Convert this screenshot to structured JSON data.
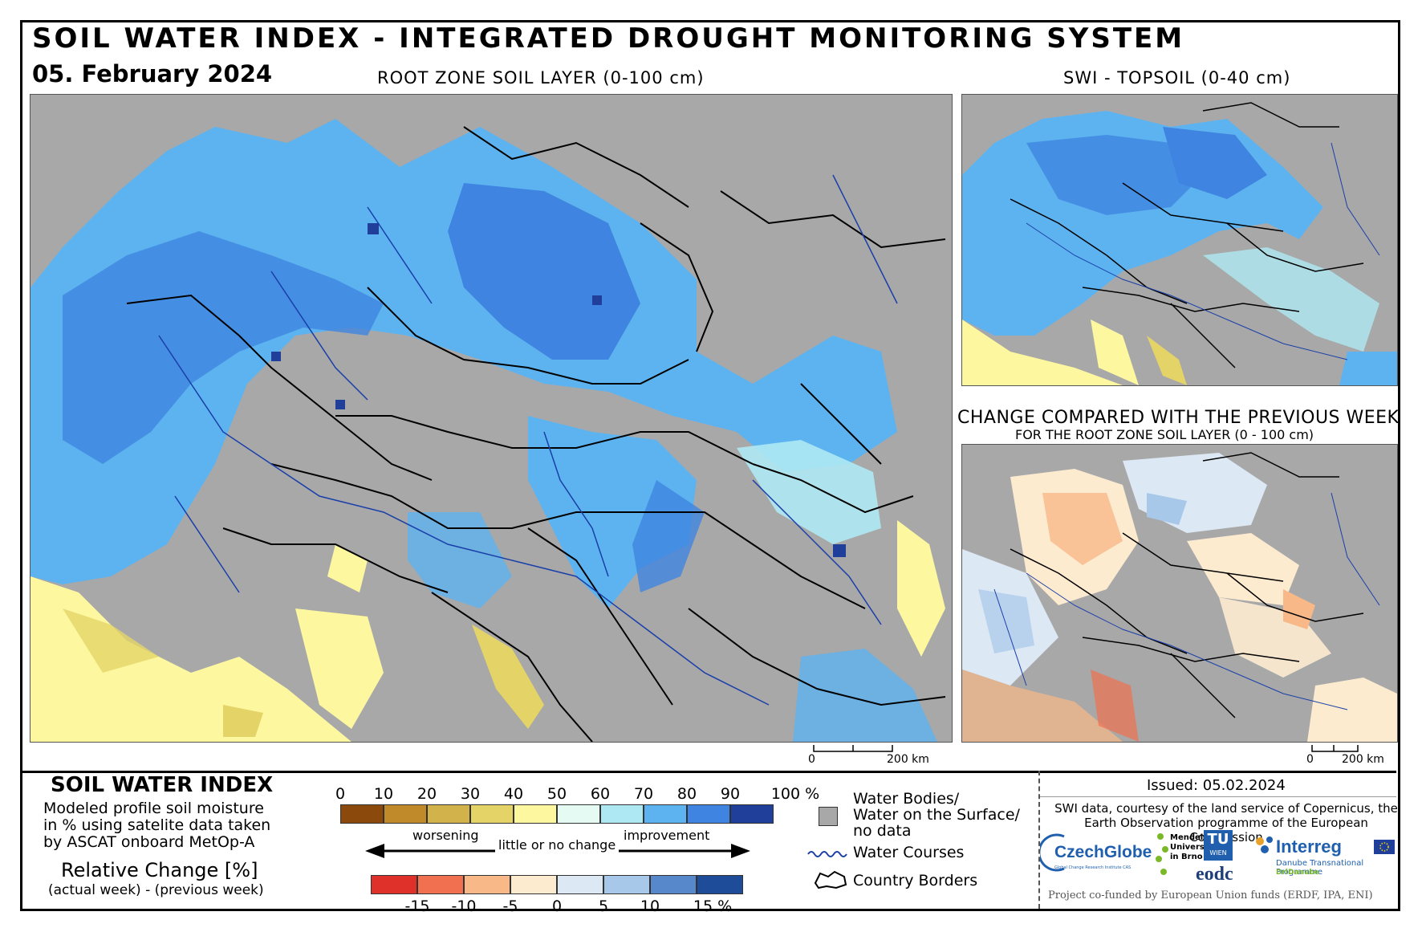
{
  "header": {
    "title": "SOIL WATER INDEX - INTEGRATED DROUGHT MONITORING SYSTEM",
    "date": "05. February 2024",
    "main_map_title": "ROOT ZONE SOIL LAYER (0-100 cm)",
    "topsoil_title": "SWI - TOPSOIL (0-40 cm)",
    "change_title": "CHANGE COMPARED WITH THE PREVIOUS WEEK",
    "change_subtitle": "FOR THE ROOT ZONE SOIL LAYER (0 - 100 cm)"
  },
  "scales": {
    "main_zero": "0",
    "main_km": "200 km",
    "small_zero": "0",
    "small_km": "200 km"
  },
  "legend": {
    "title": "SOIL WATER INDEX",
    "description_1": "Modeled profile soil moisture",
    "description_2": "in % using satelite data taken",
    "description_3": "by ASCAT onboard MetOp-A",
    "relative_title": "Relative Change [%]",
    "relative_sub": "(actual week) - (previous week)",
    "swi_ticks": [
      "0",
      "10",
      "20",
      "30",
      "40",
      "50",
      "60",
      "70",
      "80",
      "90",
      "100 %"
    ],
    "swi_colors": [
      "#8b4a0c",
      "#c08a2a",
      "#d2b24a",
      "#e4d468",
      "#fdf7a0",
      "#e4faf2",
      "#aee8f3",
      "#5db3f0",
      "#3f84e0",
      "#1f3f9a"
    ],
    "change_ticks": [
      "-15",
      "-10",
      "-5",
      "0",
      "5",
      "10",
      "15 %"
    ],
    "change_colors": [
      "#e0302a",
      "#f07050",
      "#f8b888",
      "#fdebd0",
      "#dce8f4",
      "#a8c8ea",
      "#5888cc",
      "#1e4c99"
    ],
    "worsening": "worsening",
    "little_change": "little or no change",
    "improvement": "improvement",
    "water_bodies_1": "Water Bodies/",
    "water_bodies_2": "Water on the Surface/",
    "water_bodies_3": "no data",
    "water_courses": "Water Courses",
    "country_borders": "Country Borders"
  },
  "footer": {
    "issued": "Issued: 05.02.2024",
    "credit_1": "SWI data, courtesy of the land service of Copernicus, the",
    "credit_2": "Earth Observation programme of the European Commission",
    "cofunded": "Project co-funded by European Union funds (ERDF, IPA, ENI)",
    "logo_czechglobe": "CzechGlobe",
    "logo_czechglobe_sub": "Global Change Research Institute CAS",
    "logo_mendel_1": "Mendel",
    "logo_mendel_2": "University",
    "logo_mendel_3": "in Brno",
    "logo_tu": "TU",
    "logo_wien": "WIEN",
    "logo_eodc": "eodc",
    "logo_interreg": "Interreg",
    "logo_interreg_sub1": "Danube Transnational Programme",
    "logo_interreg_sub2": "DriDanube"
  },
  "colors": {
    "nodata": "#a8a8a8",
    "wet_dark": "#1f3f9a",
    "wet": "#3f84e0",
    "wet_mid": "#5db3f0",
    "wet_light": "#aee8f3",
    "dry_yellow": "#fdf7a0",
    "dry_ochre": "#e4d468",
    "border": "#000000",
    "river": "#1a3fa8"
  }
}
